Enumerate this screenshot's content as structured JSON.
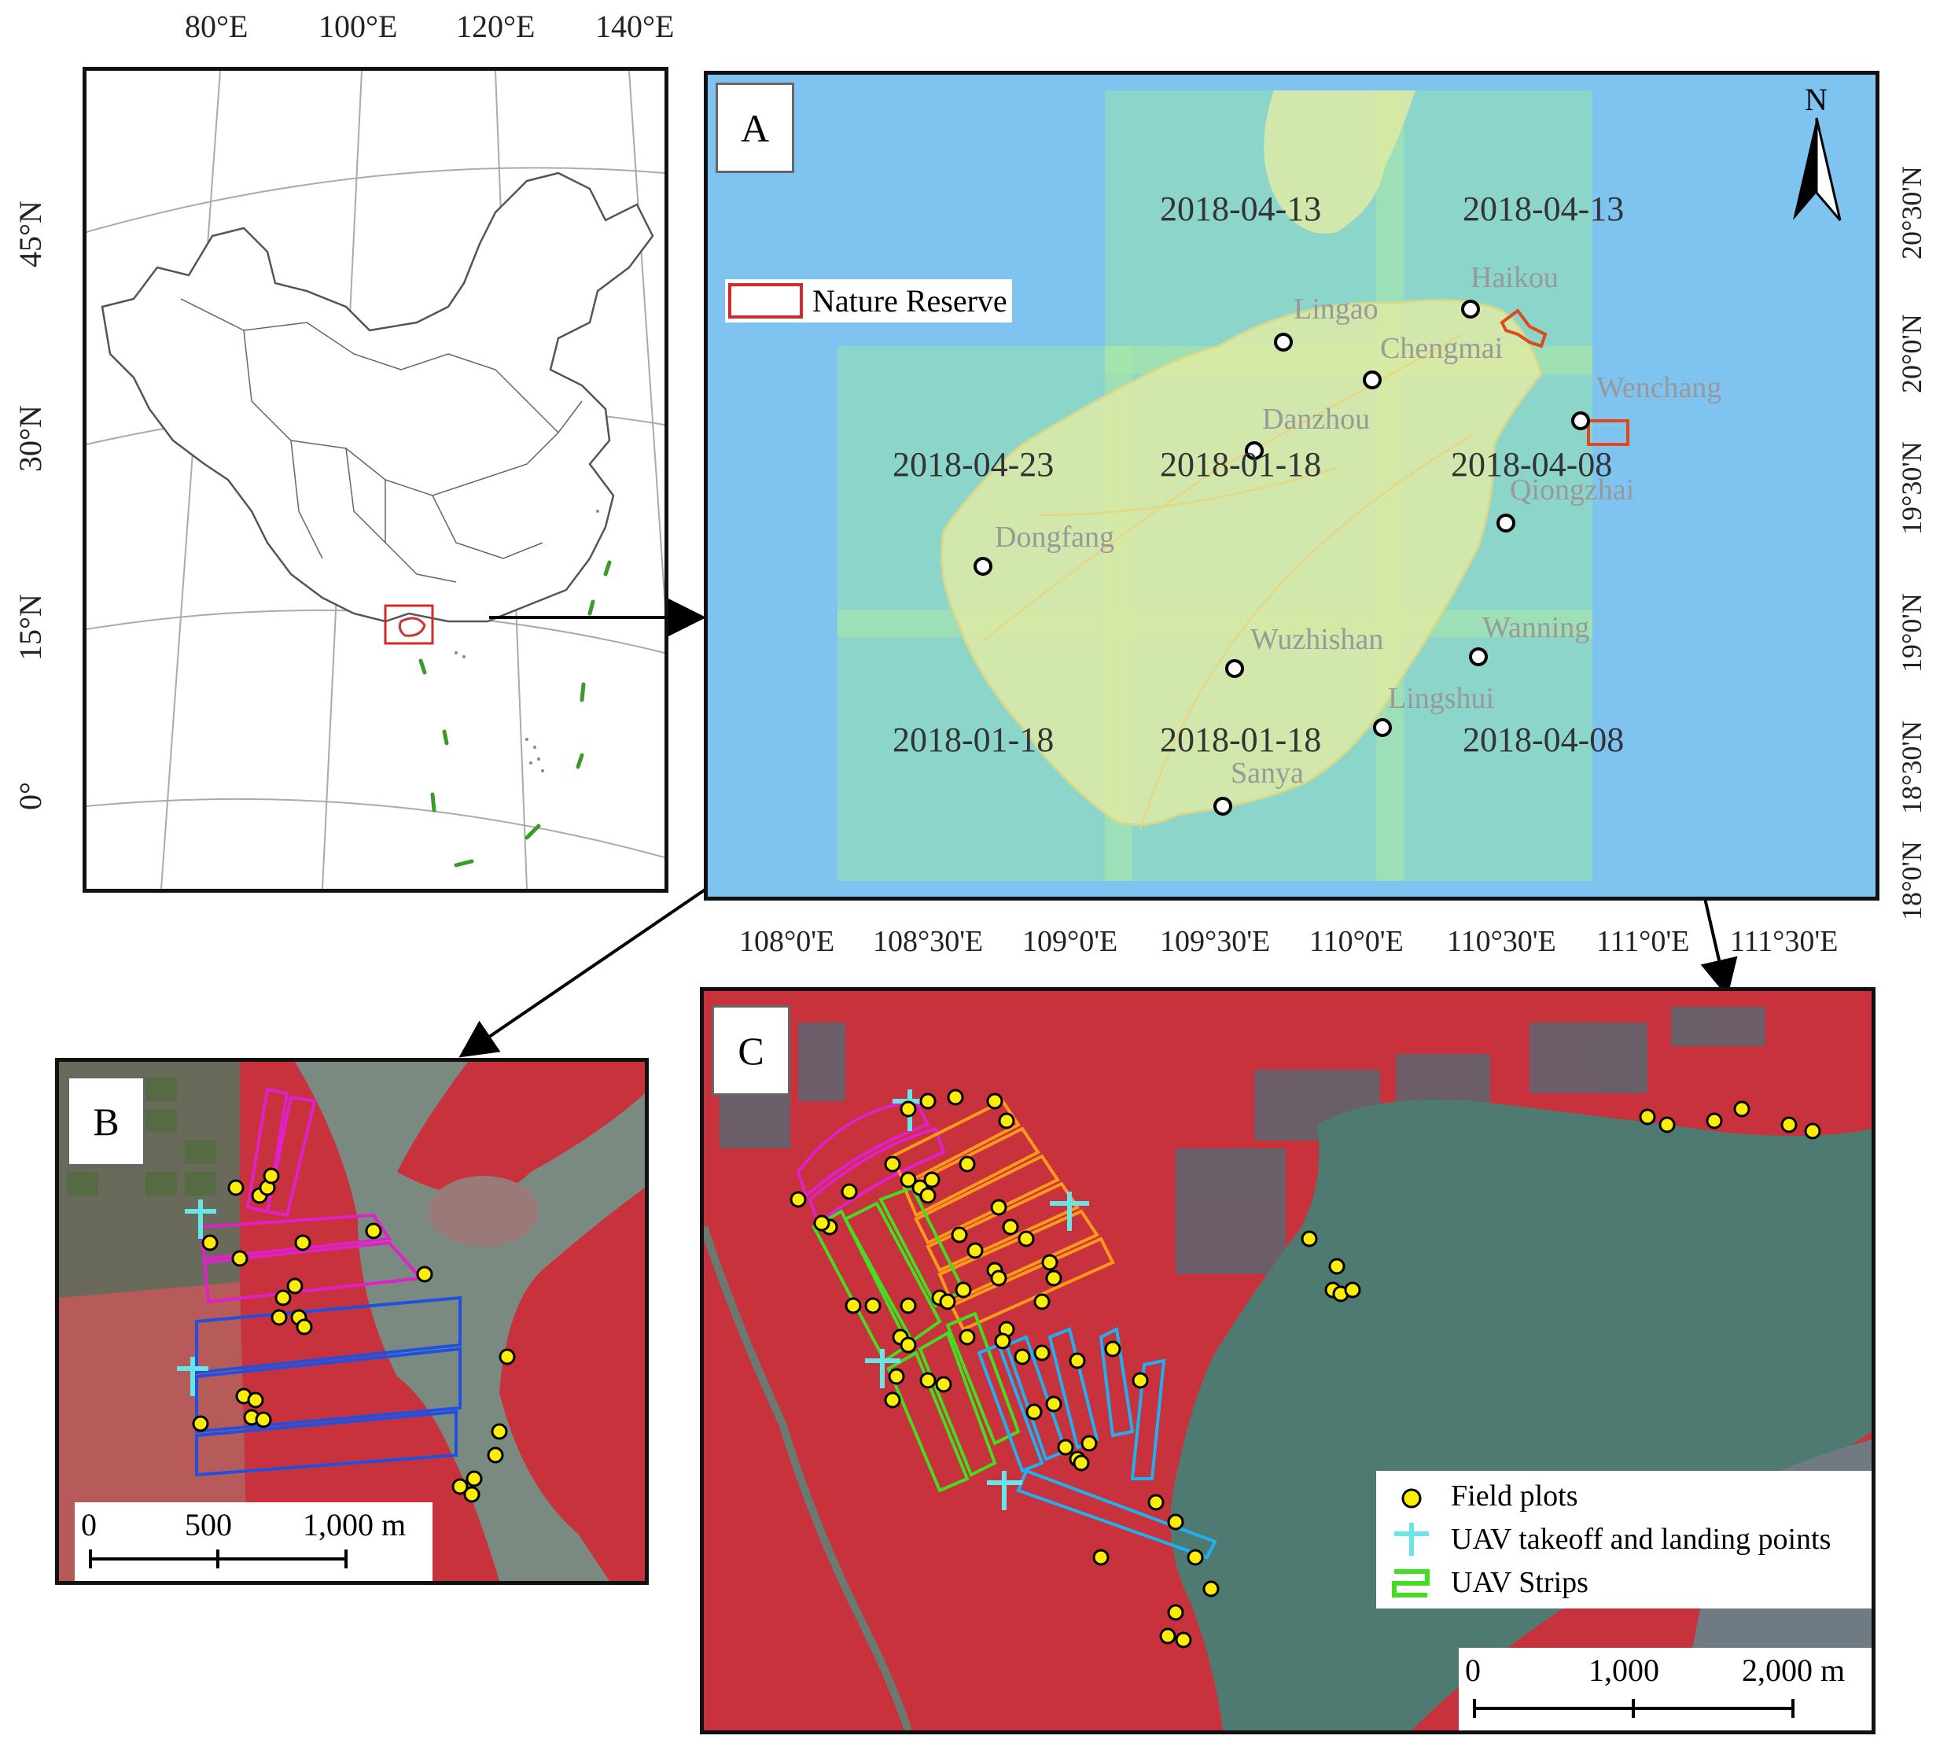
{
  "inset_map": {
    "lon_labels": [
      "80°E",
      "100°E",
      "120°E",
      "140°E"
    ],
    "lat_labels": [
      "45°N",
      "30°N",
      "15°N",
      "0°"
    ]
  },
  "panel_a": {
    "tag": "A",
    "north": "N",
    "legend_nature_reserve": "Nature Reserve",
    "image_dates": [
      "2018-04-13",
      "2018-04-13",
      "2018-04-23",
      "2018-01-18",
      "2018-04-08",
      "2018-01-18",
      "2018-01-18",
      "2018-04-08"
    ],
    "cities": [
      "Haikou",
      "Lingao",
      "Chengmai",
      "Wenchang",
      "Danzhou",
      "Qiongzhai",
      "Dongfang",
      "Wuzhishan",
      "Wanning",
      "Lingshui",
      "Sanya"
    ],
    "lon_labels": [
      "108°0'E",
      "108°30'E",
      "109°0'E",
      "109°30'E",
      "110°0'E",
      "110°30'E",
      "111°0'E",
      "111°30'E"
    ],
    "lat_labels": [
      "20°30'N",
      "20°0'N",
      "19°30'N",
      "19°0'N",
      "18°30'N",
      "18°0'N"
    ]
  },
  "panel_b": {
    "tag": "B",
    "scale_labels": [
      "0",
      "500",
      "1,000 m"
    ]
  },
  "panel_c": {
    "tag": "C",
    "scale_labels": [
      "0",
      "1,000",
      "2,000 m"
    ],
    "legend": {
      "field_plots": "Field plots",
      "uav_points": "UAV takeoff and landing points",
      "uav_strips": "UAV Strips"
    }
  },
  "colors": {
    "frame": "#111111",
    "ocean": "#7fc3f0",
    "image_tiles": "#8ed8c4",
    "reserve": "#d42a2a",
    "field_plot": "#ffee00",
    "uav_point": "#66e6e6",
    "uav_strip": "#44dd22",
    "false_color_red": "#c8323c",
    "water": "#4f7a72"
  }
}
